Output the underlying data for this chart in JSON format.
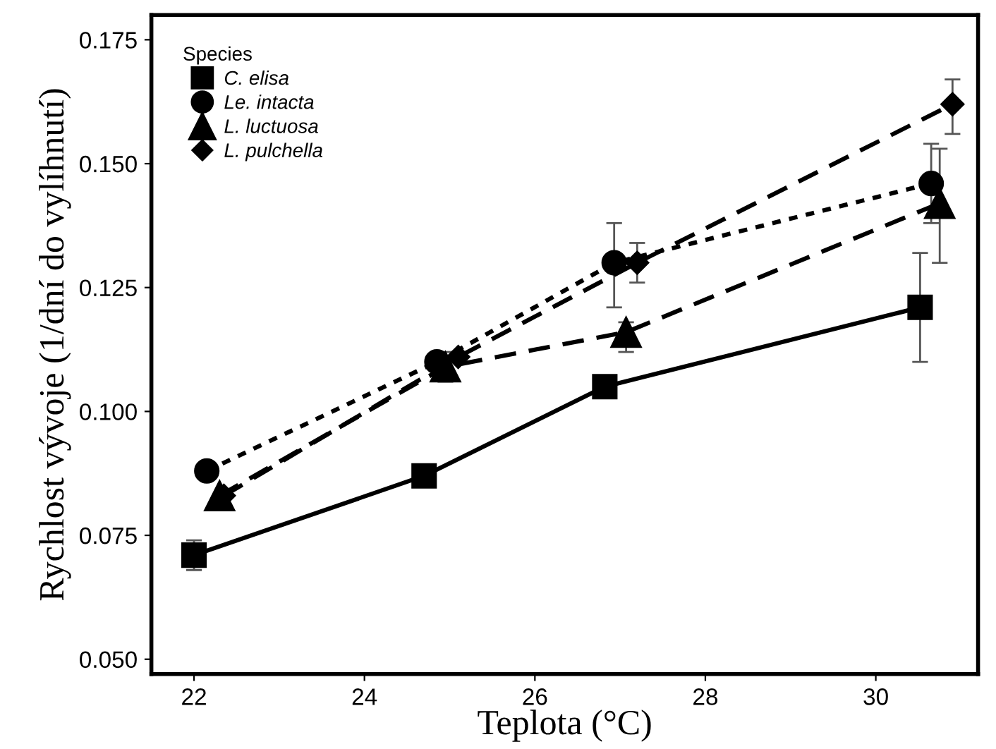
{
  "chart_data": {
    "type": "line",
    "xlabel": "Teplota (°C)",
    "ylabel": "Rychlost vývoje (1/dní do vylíhnutí)",
    "legend_title": "Species",
    "legend": "top left",
    "grid": false,
    "xlim": [
      21.5,
      31.2
    ],
    "xticks": [
      22,
      24,
      26,
      28,
      30
    ],
    "ylim": [
      0.047,
      0.18
    ],
    "yticks": [
      {
        "value": 0.05,
        "label": "0.050"
      },
      {
        "value": 0.075,
        "label": "0.075"
      },
      {
        "value": 0.1,
        "label": "0.100"
      },
      {
        "value": 0.125,
        "label": "0.125"
      },
      {
        "value": 0.15,
        "label": "0.150"
      },
      {
        "value": 0.175,
        "label": "0.175"
      }
    ],
    "series": [
      {
        "name": "C. elisa",
        "color": "#000000",
        "marker": "square",
        "line_style": "solid",
        "x": [
          22.0,
          24.7,
          26.82,
          30.52
        ],
        "values": [
          0.071,
          0.087,
          0.105,
          0.121
        ],
        "errors": [
          0.003,
          null,
          null,
          0.011
        ]
      },
      {
        "name": "Le. intacta",
        "color": "#000000",
        "marker": "circle",
        "line_style": "dotted",
        "x": [
          22.15,
          24.85,
          26.93,
          30.65
        ],
        "values": [
          0.088,
          0.11,
          0.13,
          0.146
        ],
        "errors": [
          null,
          null,
          [
            0.121,
            0.138
          ],
          [
            0.138,
            0.154
          ]
        ]
      },
      {
        "name": "L. luctuosa",
        "color": "#000000",
        "marker": "triangle",
        "line_style": "dashed",
        "x": [
          22.3,
          24.95,
          27.07,
          30.75
        ],
        "values": [
          0.083,
          0.109,
          0.116,
          0.142
        ],
        "errors": [
          null,
          0.003,
          [
            0.112,
            0.118
          ],
          [
            0.13,
            0.153
          ]
        ]
      },
      {
        "name": "L. pulchella",
        "color": "#000000",
        "marker": "diamond",
        "line_style": "dashed",
        "x": [
          22.35,
          25.1,
          27.2,
          30.9
        ],
        "values": [
          0.083,
          0.111,
          0.13,
          0.162
        ],
        "errors": [
          null,
          null,
          [
            0.126,
            0.134
          ],
          [
            0.156,
            0.167
          ]
        ]
      }
    ]
  }
}
